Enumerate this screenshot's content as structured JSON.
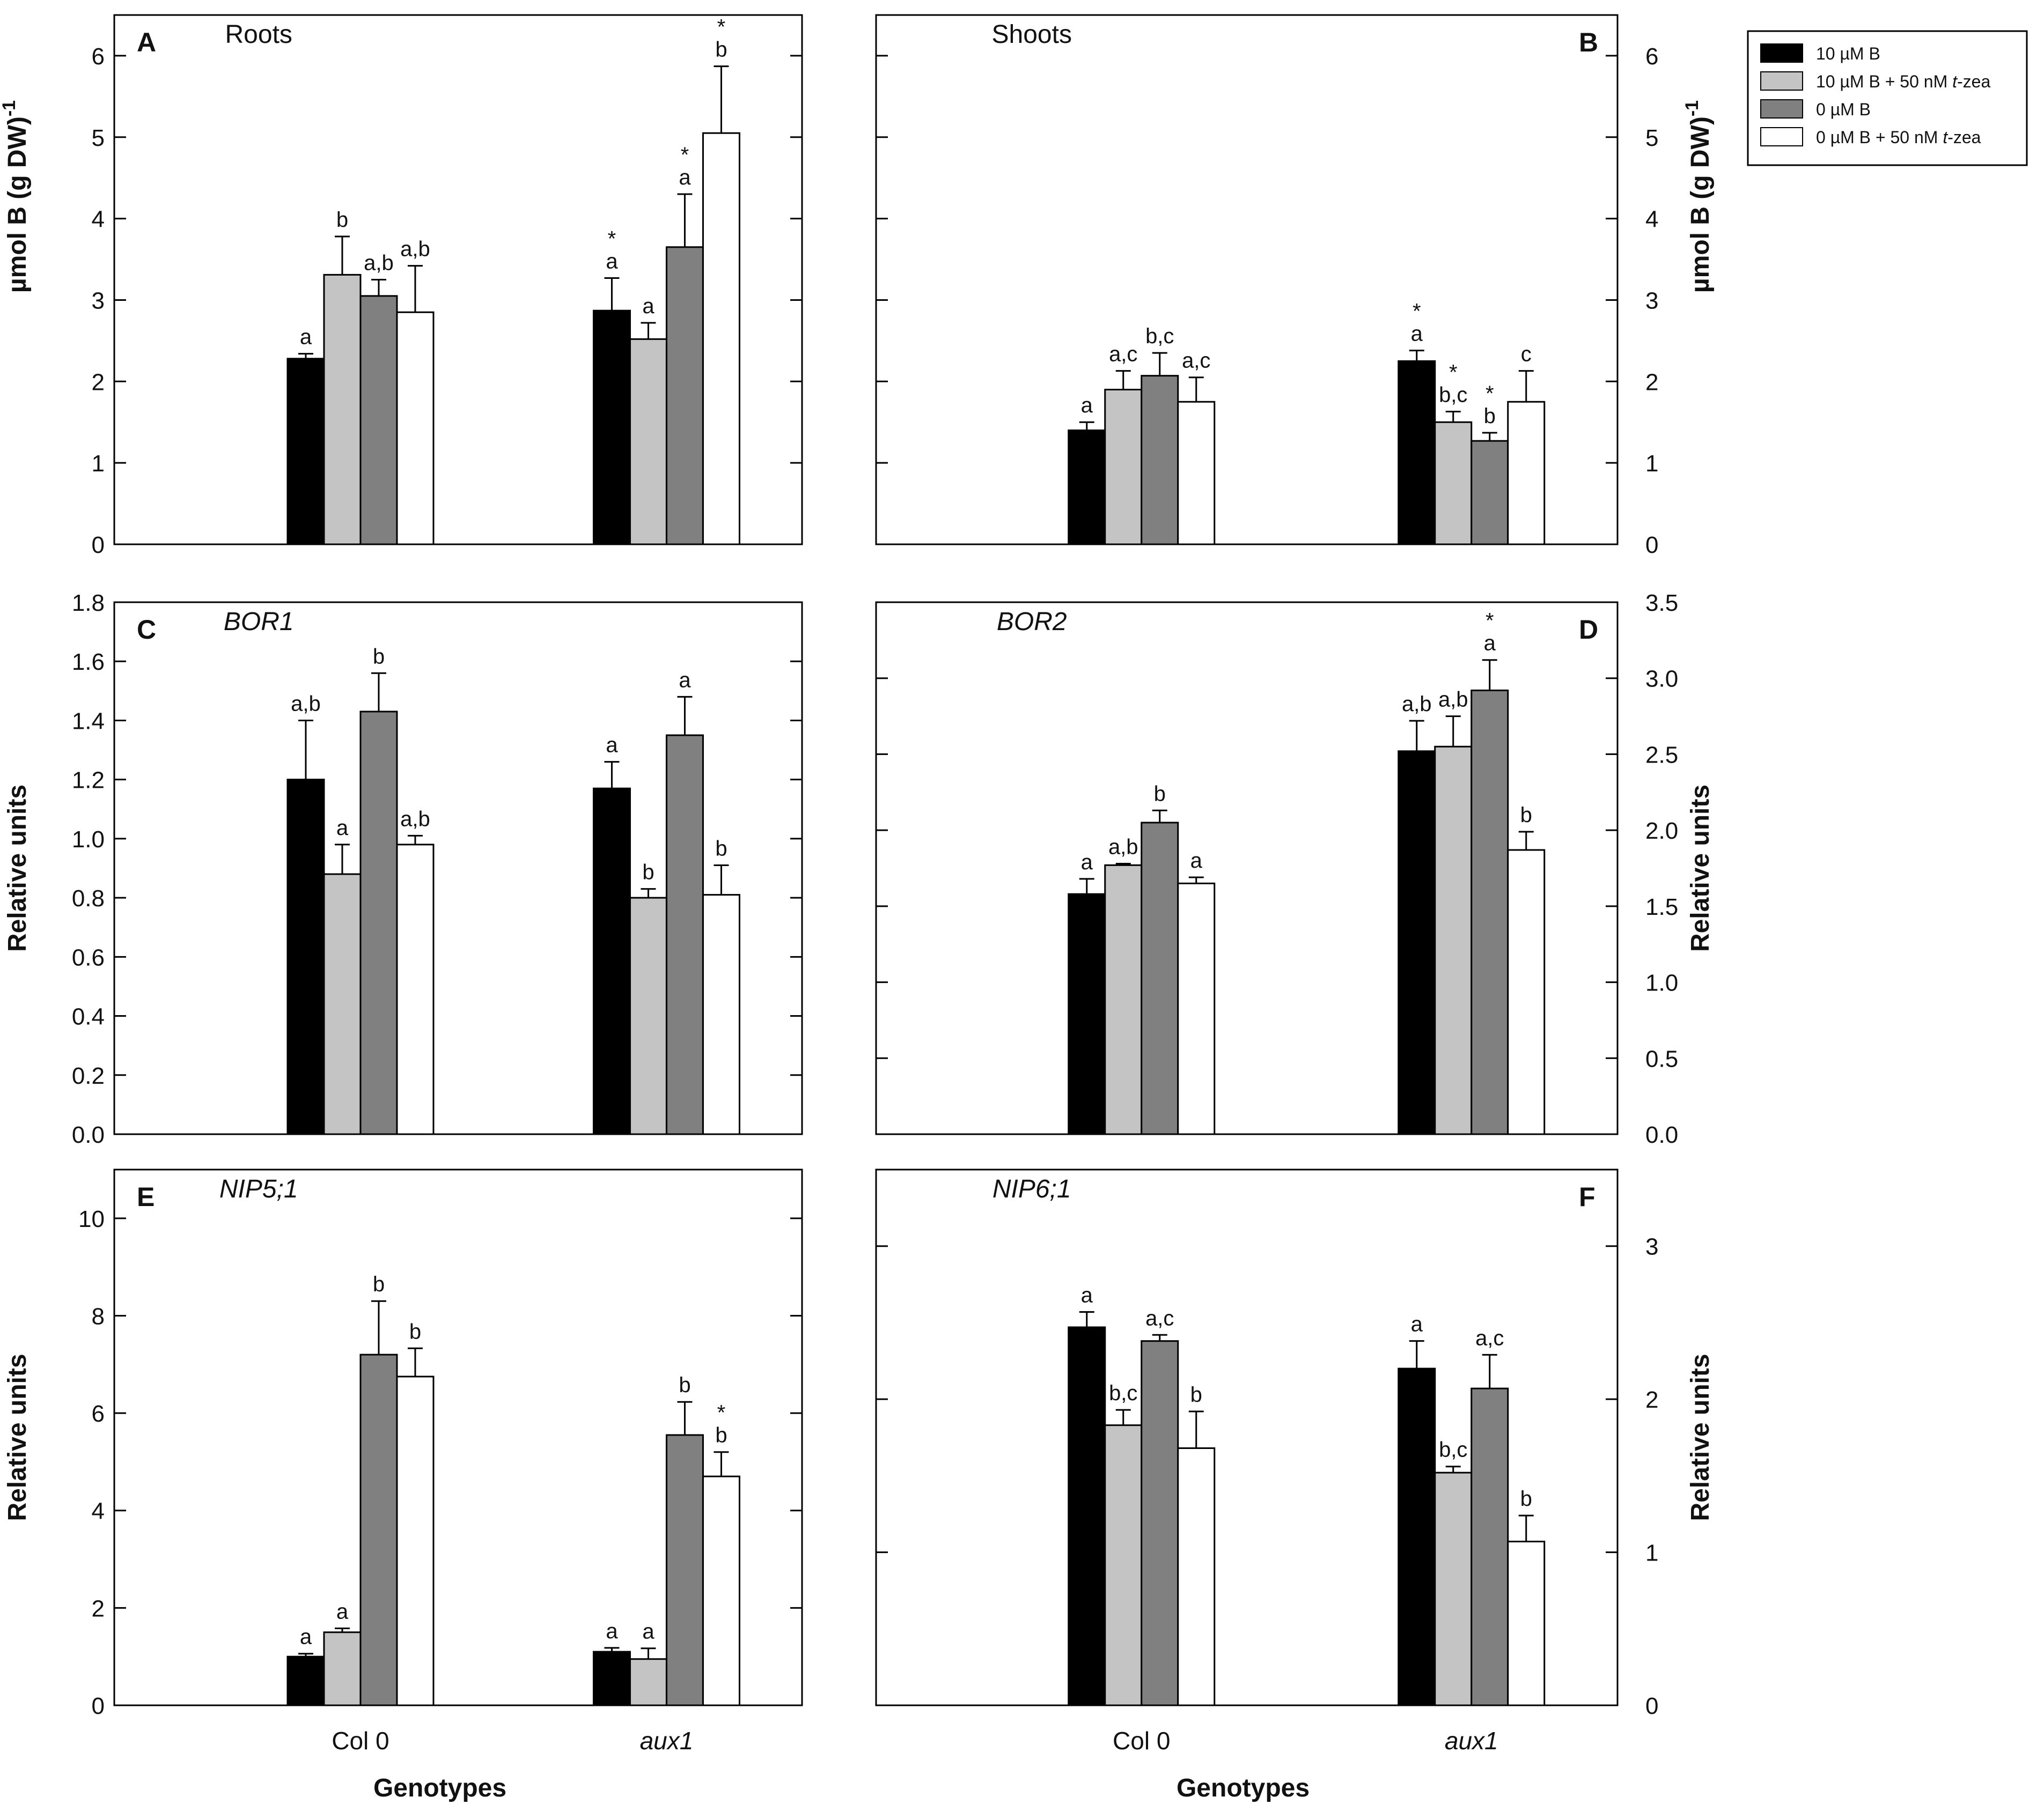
{
  "figure": {
    "genotypes_label": "Genotypes",
    "star_symbol": "*"
  },
  "legend": {
    "entries": [
      {
        "label": "10 µM B",
        "color": "#000000"
      },
      {
        "label": "10 µM B + 50 nM ",
        "italic": "t",
        "suffix": "-zea",
        "color": "#c4c4c4"
      },
      {
        "label": "0 µM B",
        "color": "#808080"
      },
      {
        "label": "0 µM B + 50 nM ",
        "italic": "t",
        "suffix": "-zea",
        "color": "#ffffff"
      }
    ]
  },
  "chart_data": [
    {
      "type": "bar",
      "panel": "A",
      "title": "Roots",
      "title_italic": false,
      "ylabel": "µmol B (g DW)",
      "ylabel_sup": "-1",
      "yaxis_side": "left",
      "ylim": [
        0,
        6.5
      ],
      "yticks": [
        0,
        1,
        2,
        3,
        4,
        5,
        6
      ],
      "ytick_labels": [
        "0",
        "1",
        "2",
        "3",
        "4",
        "5",
        "6"
      ],
      "categories": [
        "Col 0",
        "aux1"
      ],
      "series": [
        {
          "name": "10 µM B",
          "values": [
            2.28,
            2.87
          ],
          "errors": [
            0.06,
            0.4
          ],
          "labels": [
            "a",
            "a"
          ],
          "stars": [
            false,
            true
          ]
        },
        {
          "name": "10 µM B + 50 nM t-zea",
          "values": [
            3.31,
            2.52
          ],
          "errors": [
            0.47,
            0.2
          ],
          "labels": [
            "b",
            "a"
          ],
          "stars": [
            false,
            false
          ]
        },
        {
          "name": "0 µM B",
          "values": [
            3.05,
            3.65
          ],
          "errors": [
            0.2,
            0.65
          ],
          "labels": [
            "a,b",
            "a"
          ],
          "stars": [
            false,
            true
          ]
        },
        {
          "name": "0 µM B + 50 nM t-zea",
          "values": [
            2.85,
            5.05
          ],
          "errors": [
            0.57,
            0.82
          ],
          "labels": [
            "a,b",
            "b"
          ],
          "stars": [
            false,
            true
          ]
        }
      ]
    },
    {
      "type": "bar",
      "panel": "B",
      "title": "Shoots",
      "title_italic": false,
      "ylabel": "µmol B (g DW)",
      "ylabel_sup": "-1",
      "yaxis_side": "right",
      "ylim": [
        0,
        6.5
      ],
      "yticks": [
        0,
        1,
        2,
        3,
        4,
        5,
        6
      ],
      "ytick_labels": [
        "0",
        "1",
        "2",
        "3",
        "4",
        "5",
        "6"
      ],
      "categories": [
        "Col 0",
        "aux1"
      ],
      "series": [
        {
          "name": "10 µM B",
          "values": [
            1.4,
            2.25
          ],
          "errors": [
            0.1,
            0.13
          ],
          "labels": [
            "a",
            "a"
          ],
          "stars": [
            false,
            true
          ]
        },
        {
          "name": "10 µM B + 50 nM t-zea",
          "values": [
            1.9,
            1.5
          ],
          "errors": [
            0.23,
            0.13
          ],
          "labels": [
            "a,c",
            "b,c"
          ],
          "stars": [
            false,
            true
          ]
        },
        {
          "name": "0 µM B",
          "values": [
            2.07,
            1.27
          ],
          "errors": [
            0.28,
            0.1
          ],
          "labels": [
            "b,c",
            "b"
          ],
          "stars": [
            false,
            true
          ]
        },
        {
          "name": "0 µM B + 50 nM t-zea",
          "values": [
            1.75,
            1.75
          ],
          "errors": [
            0.3,
            0.38
          ],
          "labels": [
            "a,c",
            "c"
          ],
          "stars": [
            false,
            false
          ]
        }
      ]
    },
    {
      "type": "bar",
      "panel": "C",
      "title": "BOR1",
      "title_italic": true,
      "ylabel": "Relative units",
      "ylabel_sup": "",
      "yaxis_side": "left",
      "ylim": [
        0,
        1.8
      ],
      "yticks": [
        0,
        0.2,
        0.4,
        0.6,
        0.8,
        1.0,
        1.2,
        1.4,
        1.6,
        1.8
      ],
      "ytick_labels": [
        "0.0",
        "0.2",
        "0.4",
        "0.6",
        "0.8",
        "1.0",
        "1.2",
        "1.4",
        "1.6",
        "1.8"
      ],
      "categories": [
        "Col 0",
        "aux1"
      ],
      "series": [
        {
          "name": "10 µM B",
          "values": [
            1.2,
            1.17
          ],
          "errors": [
            0.2,
            0.09
          ],
          "labels": [
            "a,b",
            "a"
          ],
          "stars": [
            false,
            false
          ]
        },
        {
          "name": "10 µM B + 50 nM t-zea",
          "values": [
            0.88,
            0.8
          ],
          "errors": [
            0.1,
            0.03
          ],
          "labels": [
            "a",
            "b"
          ],
          "stars": [
            false,
            false
          ]
        },
        {
          "name": "0 µM B",
          "values": [
            1.43,
            1.35
          ],
          "errors": [
            0.13,
            0.13
          ],
          "labels": [
            "b",
            "a"
          ],
          "stars": [
            false,
            false
          ]
        },
        {
          "name": "0 µM B + 50 nM t-zea",
          "values": [
            0.98,
            0.81
          ],
          "errors": [
            0.03,
            0.1
          ],
          "labels": [
            "a,b",
            "b"
          ],
          "stars": [
            false,
            false
          ]
        }
      ]
    },
    {
      "type": "bar",
      "panel": "D",
      "title": "BOR2",
      "title_italic": true,
      "ylabel": "Relative units",
      "ylabel_sup": "",
      "yaxis_side": "right",
      "ylim": [
        0,
        3.5
      ],
      "yticks": [
        0,
        0.5,
        1.0,
        1.5,
        2.0,
        2.5,
        3.0,
        3.5
      ],
      "ytick_labels": [
        "0.0",
        "0.5",
        "1.0",
        "1.5",
        "2.0",
        "2.5",
        "3.0",
        "3.5"
      ],
      "categories": [
        "Col 0",
        "aux1"
      ],
      "series": [
        {
          "name": "10 µM B",
          "values": [
            1.58,
            2.52
          ],
          "errors": [
            0.1,
            0.2
          ],
          "labels": [
            "a",
            "a,b"
          ],
          "stars": [
            false,
            false
          ]
        },
        {
          "name": "10 µM B + 50 nM t-zea",
          "values": [
            1.77,
            2.55
          ],
          "errors": [
            0.01,
            0.2
          ],
          "labels": [
            "a,b",
            "a,b"
          ],
          "stars": [
            false,
            false
          ]
        },
        {
          "name": "0 µM B",
          "values": [
            2.05,
            2.92
          ],
          "errors": [
            0.08,
            0.2
          ],
          "labels": [
            "b",
            "a"
          ],
          "stars": [
            false,
            true
          ]
        },
        {
          "name": "0 µM B + 50 nM t-zea",
          "values": [
            1.65,
            1.87
          ],
          "errors": [
            0.04,
            0.12
          ],
          "labels": [
            "a",
            "b"
          ],
          "stars": [
            false,
            false
          ]
        }
      ]
    },
    {
      "type": "bar",
      "panel": "E",
      "title": "NIP5;1",
      "title_italic": true,
      "ylabel": "Relative units",
      "ylabel_sup": "",
      "yaxis_side": "left",
      "ylim": [
        0,
        11
      ],
      "yticks": [
        0,
        2,
        4,
        6,
        8,
        10
      ],
      "ytick_labels": [
        "0",
        "2",
        "4",
        "6",
        "8",
        "10"
      ],
      "categories": [
        "Col 0",
        "aux1"
      ],
      "series": [
        {
          "name": "10 µM B",
          "values": [
            1.0,
            1.1
          ],
          "errors": [
            0.06,
            0.08
          ],
          "labels": [
            "a",
            "a"
          ],
          "stars": [
            false,
            false
          ]
        },
        {
          "name": "10 µM B + 50 nM t-zea",
          "values": [
            1.5,
            0.95
          ],
          "errors": [
            0.08,
            0.22
          ],
          "labels": [
            "a",
            "a"
          ],
          "stars": [
            false,
            false
          ]
        },
        {
          "name": "0 µM B",
          "values": [
            7.2,
            5.55
          ],
          "errors": [
            1.1,
            0.68
          ],
          "labels": [
            "b",
            "b"
          ],
          "stars": [
            false,
            false
          ]
        },
        {
          "name": "0 µM B + 50 nM t-zea",
          "values": [
            6.75,
            4.7
          ],
          "errors": [
            0.58,
            0.5
          ],
          "labels": [
            "b",
            "b"
          ],
          "stars": [
            false,
            true
          ]
        }
      ]
    },
    {
      "type": "bar",
      "panel": "F",
      "title": "NIP6;1",
      "title_italic": true,
      "ylabel": "Relative units",
      "ylabel_sup": "",
      "yaxis_side": "right",
      "ylim": [
        0,
        3.5
      ],
      "yticks": [
        0,
        1,
        2,
        3
      ],
      "ytick_labels": [
        "0",
        "1",
        "2",
        "3"
      ],
      "categories": [
        "Col 0",
        "aux1"
      ],
      "series": [
        {
          "name": "10 µM B",
          "values": [
            2.47,
            2.2
          ],
          "errors": [
            0.1,
            0.18
          ],
          "labels": [
            "a",
            "a"
          ],
          "stars": [
            false,
            false
          ]
        },
        {
          "name": "10 µM B + 50 nM t-zea",
          "values": [
            1.83,
            1.52
          ],
          "errors": [
            0.1,
            0.04
          ],
          "labels": [
            "b,c",
            "b,c"
          ],
          "stars": [
            false,
            false
          ]
        },
        {
          "name": "0 µM B",
          "values": [
            2.38,
            2.07
          ],
          "errors": [
            0.04,
            0.22
          ],
          "labels": [
            "a,c",
            "a,c"
          ],
          "stars": [
            false,
            false
          ]
        },
        {
          "name": "0 µM B + 50 nM t-zea",
          "values": [
            1.68,
            1.07
          ],
          "errors": [
            0.24,
            0.17
          ],
          "labels": [
            "b",
            "b"
          ],
          "stars": [
            false,
            false
          ]
        }
      ]
    }
  ]
}
